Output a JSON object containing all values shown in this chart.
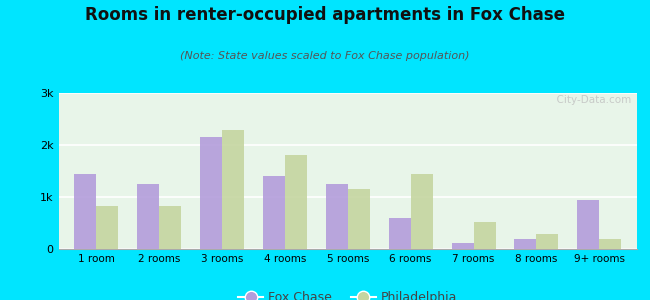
{
  "title": "Rooms in renter-occupied apartments in Fox Chase",
  "subtitle": "(Note: State values scaled to Fox Chase population)",
  "categories": [
    "1 room",
    "2 rooms",
    "3 rooms",
    "4 rooms",
    "5 rooms",
    "6 rooms",
    "7 rooms",
    "8 rooms",
    "9+ rooms"
  ],
  "fox_chase": [
    1450,
    1250,
    2150,
    1400,
    1250,
    600,
    120,
    200,
    950
  ],
  "philadelphia": [
    820,
    820,
    2280,
    1800,
    1150,
    1450,
    520,
    280,
    200
  ],
  "fox_chase_color": "#b39ddb",
  "philadelphia_color": "#c5d5a0",
  "background_outer": "#00e5ff",
  "background_inner": "#e8f5e9",
  "ylabel_ticks": [
    0,
    1000,
    2000,
    3000
  ],
  "ylabel_labels": [
    "0",
    "1k",
    "2k",
    "3k"
  ],
  "ylim": [
    0,
    3000
  ],
  "title_fontsize": 12,
  "subtitle_fontsize": 8,
  "legend_labels": [
    "Fox Chase",
    "Philadelphia"
  ],
  "watermark": "  City-Data.com"
}
